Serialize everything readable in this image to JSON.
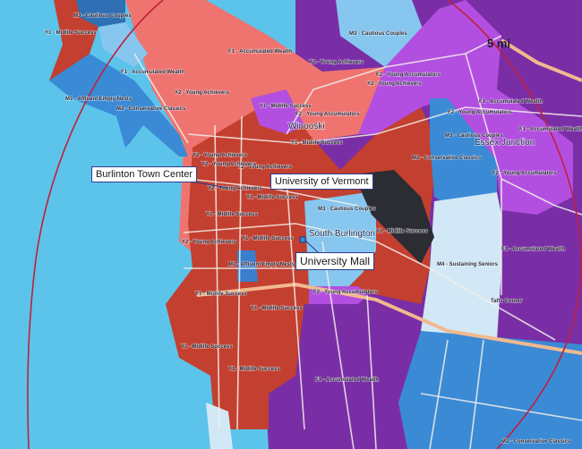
{
  "map": {
    "colors": {
      "water": "#5cc3ea",
      "red_midlife_success": "#c33f2f",
      "salmon_young_achievers": "#ef7470",
      "purple_accumulated_wealth": "#7a2ea6",
      "violet_young_accumulators": "#b24fe0",
      "blue_conservative_classics": "#3a8ad6",
      "sky_cautious_couples": "#86c6ef",
      "pale_sustaining_seniors": "#d2e8f6",
      "dark_campus": "#2c2c33",
      "radius_ring": "#c0203a"
    },
    "radius_label": "5 mi",
    "callouts": {
      "town_center": "Burlinton Town Center",
      "uvm": "University of Vermont",
      "mall": "University Mall"
    },
    "places": {
      "winooski": "Winooski",
      "essex_junction": "Essex Junction",
      "south_burlington": "South Burlington",
      "tafts_corner": "Tafts Corner"
    },
    "segments": [
      "M3 - Cautious Couples",
      "Y1 - Midlife Success",
      "F1 - Accumulated Wealth",
      "M1 - Affluent Empty Nests",
      "Y2 - Young Achievers",
      "M2 - Conservative Classics",
      "F2 - Young Accumulators",
      "M4 - Sustaining Seniors"
    ]
  }
}
